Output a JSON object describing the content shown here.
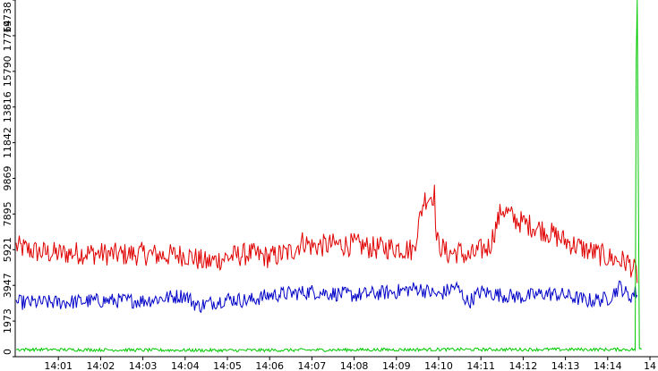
{
  "chart_data": {
    "type": "line",
    "title": "",
    "xlabel": "",
    "ylabel": "",
    "grid": false,
    "ylim": [
      0,
      19738
    ],
    "y_ticks": [
      "0",
      "1973",
      "3947",
      "5921",
      "7895",
      "9869",
      "11842",
      "13816",
      "15790",
      "17764",
      "19738"
    ],
    "x_ticks": [
      "14:01",
      "14:02",
      "14:03",
      "14:04",
      "14:05",
      "14:06",
      "14:07",
      "14:08",
      "14:09",
      "14:10",
      "14:11",
      "14:12",
      "14:13",
      "14:14",
      "14"
    ],
    "series": [
      {
        "color": "#e00000",
        "keypoints": [
          [
            0.0,
            6100
          ],
          [
            0.5,
            5800
          ],
          [
            1.0,
            5700
          ],
          [
            1.5,
            5750
          ],
          [
            2.0,
            5700
          ],
          [
            2.5,
            5650
          ],
          [
            3.0,
            5700
          ],
          [
            3.5,
            5600
          ],
          [
            4.0,
            5650
          ],
          [
            4.5,
            5200
          ],
          [
            5.0,
            5500
          ],
          [
            5.5,
            5700
          ],
          [
            6.0,
            5500
          ],
          [
            6.5,
            5800
          ],
          [
            6.8,
            6400
          ],
          [
            7.0,
            6100
          ],
          [
            7.5,
            6200
          ],
          [
            7.8,
            6200
          ],
          [
            8.0,
            6200
          ],
          [
            8.5,
            6000
          ],
          [
            9.0,
            6050
          ],
          [
            9.4,
            5900
          ],
          [
            9.65,
            8700
          ],
          [
            9.9,
            9000
          ],
          [
            9.95,
            6400
          ],
          [
            10.2,
            5700
          ],
          [
            10.5,
            5800
          ],
          [
            10.7,
            5500
          ],
          [
            11.0,
            5900
          ],
          [
            11.2,
            6100
          ],
          [
            11.5,
            8200
          ],
          [
            11.8,
            7600
          ],
          [
            12.0,
            7400
          ],
          [
            12.5,
            7000
          ],
          [
            13.0,
            6400
          ],
          [
            13.5,
            5900
          ],
          [
            14.0,
            5500
          ],
          [
            14.5,
            5200
          ],
          [
            14.7,
            4500
          ]
        ]
      },
      {
        "color": "#0000c8",
        "keypoints": [
          [
            0.0,
            3000
          ],
          [
            1.0,
            3000
          ],
          [
            2.0,
            3100
          ],
          [
            3.0,
            3100
          ],
          [
            4.0,
            3400
          ],
          [
            4.3,
            2800
          ],
          [
            5.0,
            3200
          ],
          [
            5.5,
            3100
          ],
          [
            6.0,
            3400
          ],
          [
            7.0,
            3600
          ],
          [
            8.0,
            3400
          ],
          [
            9.0,
            3600
          ],
          [
            9.5,
            3800
          ],
          [
            10.0,
            3400
          ],
          [
            10.4,
            3900
          ],
          [
            10.7,
            3000
          ],
          [
            11.0,
            3600
          ],
          [
            11.5,
            3400
          ],
          [
            12.0,
            3300
          ],
          [
            12.5,
            3500
          ],
          [
            13.0,
            3400
          ],
          [
            13.5,
            3100
          ],
          [
            14.0,
            3200
          ],
          [
            14.3,
            3900
          ],
          [
            14.5,
            3300
          ],
          [
            14.7,
            3600
          ]
        ]
      },
      {
        "color": "#00c800",
        "keypoints": [
          [
            0.0,
            400
          ],
          [
            5.0,
            350
          ],
          [
            10.0,
            400
          ],
          [
            14.0,
            400
          ],
          [
            14.65,
            400
          ],
          [
            14.68,
            19738
          ],
          [
            14.71,
            19738
          ],
          [
            14.74,
            400
          ],
          [
            14.8,
            400
          ]
        ]
      }
    ]
  }
}
